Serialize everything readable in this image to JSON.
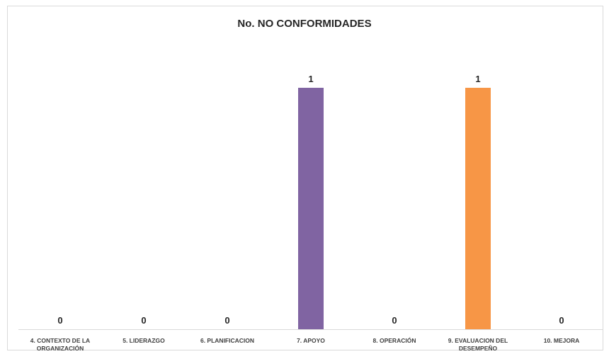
{
  "chart_data": {
    "type": "bar",
    "title": "No. NO CONFORMIDADES",
    "xlabel": "",
    "ylabel": "",
    "categories": [
      [
        "4. CONTEXTO DE LA",
        "ORGANIZACIÓN"
      ],
      [
        "5. LIDERAZGO"
      ],
      [
        "6. PLANIFICACION"
      ],
      [
        "7. APOYO"
      ],
      [
        "8. OPERACIÓN"
      ],
      [
        "9. EVALUACION DEL",
        "DESEMPEÑO"
      ],
      [
        "10. MEJORA"
      ]
    ],
    "values": [
      0,
      0,
      0,
      1,
      0,
      1,
      0
    ],
    "bar_colors": [
      "#8064a2",
      "#8064a2",
      "#8064a2",
      "#8064a2",
      "#8064a2",
      "#f79646",
      "#8064a2"
    ],
    "ylim": [
      0,
      1.0
    ],
    "grid": false,
    "legend": "none",
    "axis_color": "#d9d9d9"
  }
}
